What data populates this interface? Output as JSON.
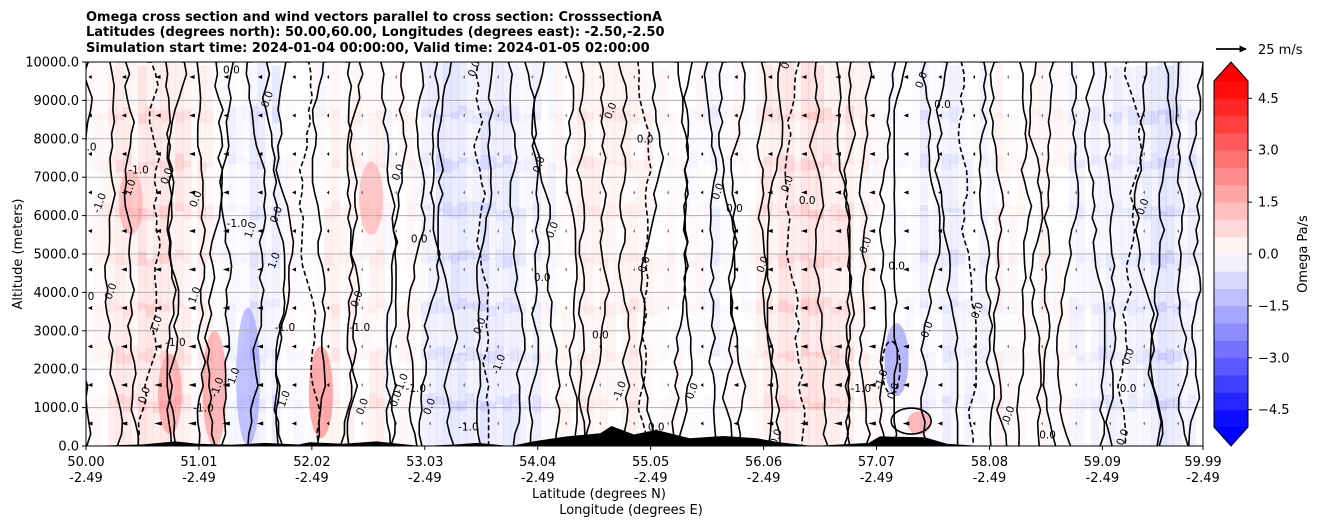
{
  "chart_data": {
    "type": "heatmap",
    "title_lines": [
      "Omega cross section and wind vectors parallel to cross section: CrosssectionA",
      "Latitudes (degrees north): 50.00,60.00, Longitudes (degrees east): -2.50,-2.50",
      "Simulation start time: 2024-01-04 00:00:00, Valid time: 2024-01-05 02:00:00"
    ],
    "xlabel_lines": [
      "Latitude (degrees N)",
      "Longitude (degrees E)"
    ],
    "ylabel": "Altitude (meters)",
    "x_range": [
      50.0,
      59.99
    ],
    "y_range": [
      0,
      10000
    ],
    "grid": "horizontal",
    "x_ticks": [
      {
        "lat": "50.00",
        "lon": "-2.49",
        "v": 50.0
      },
      {
        "lat": "51.01",
        "lon": "-2.49",
        "v": 51.01
      },
      {
        "lat": "52.02",
        "lon": "-2.49",
        "v": 52.02
      },
      {
        "lat": "53.03",
        "lon": "-2.49",
        "v": 53.03
      },
      {
        "lat": "54.04",
        "lon": "-2.49",
        "v": 54.04
      },
      {
        "lat": "55.05",
        "lon": "-2.49",
        "v": 55.05
      },
      {
        "lat": "56.06",
        "lon": "-2.49",
        "v": 56.06
      },
      {
        "lat": "57.07",
        "lon": "-2.49",
        "v": 57.07
      },
      {
        "lat": "58.08",
        "lon": "-2.49",
        "v": 58.08
      },
      {
        "lat": "59.09",
        "lon": "-2.49",
        "v": 59.09
      },
      {
        "lat": "59.99",
        "lon": "-2.49",
        "v": 59.99
      }
    ],
    "y_ticks": [
      {
        "label": "0.0",
        "v": 0
      },
      {
        "label": "1000.0",
        "v": 1000
      },
      {
        "label": "2000.0",
        "v": 2000
      },
      {
        "label": "3000.0",
        "v": 3000
      },
      {
        "label": "4000.0",
        "v": 4000
      },
      {
        "label": "5000.0",
        "v": 5000
      },
      {
        "label": "6000.0",
        "v": 6000
      },
      {
        "label": "7000.0",
        "v": 7000
      },
      {
        "label": "8000.0",
        "v": 8000
      },
      {
        "label": "9000.0",
        "v": 9000
      },
      {
        "label": "10000.0",
        "v": 10000
      }
    ],
    "colorbar": {
      "label": "Omega Pa/s",
      "range": [
        -5.0,
        5.0
      ],
      "extend": "both",
      "ticks": [
        {
          "label": "4.5",
          "v": 4.5
        },
        {
          "label": "3.0",
          "v": 3.0
        },
        {
          "label": "1.5",
          "v": 1.5
        },
        {
          "label": "0.0",
          "v": 0.0
        },
        {
          "label": "−1.5",
          "v": -1.5
        },
        {
          "label": "−3.0",
          "v": -3.0
        },
        {
          "label": "−4.5",
          "v": -4.5
        }
      ],
      "colormap": "bwr",
      "neg_color": "#0000ff",
      "zero_color": "#ffffff",
      "pos_color": "#ff0000"
    },
    "quiver_key": {
      "label": "25 m/s",
      "value": 25
    },
    "contour_labels": [
      {
        "text": "0.0",
        "lat": 50.02,
        "alt": 7700
      },
      {
        "text": "-1.0",
        "lat": 50.15,
        "alt": 6300
      },
      {
        "text": "1.0",
        "lat": 50.42,
        "alt": 6700
      },
      {
        "text": "-1.0",
        "lat": 50.47,
        "alt": 7100
      },
      {
        "text": "0.0",
        "lat": 50.75,
        "alt": 7000
      },
      {
        "text": "0.0",
        "lat": 51.01,
        "alt": 6400
      },
      {
        "text": "-1.0",
        "lat": 51.35,
        "alt": 5700
      },
      {
        "text": "1.0",
        "lat": 51.5,
        "alt": 5600
      },
      {
        "text": "0.0",
        "lat": 51.73,
        "alt": 6000
      },
      {
        "text": "0.0",
        "lat": 50.0,
        "alt": 3800
      },
      {
        "text": "0.0",
        "lat": 50.25,
        "alt": 4000
      },
      {
        "text": "-1.0",
        "lat": 50.65,
        "alt": 3100
      },
      {
        "text": "-1.0",
        "lat": 50.8,
        "alt": 2600
      },
      {
        "text": "1.0",
        "lat": 51.0,
        "alt": 3900
      },
      {
        "text": "1.0",
        "lat": 51.71,
        "alt": 4800
      },
      {
        "text": "-1.0",
        "lat": 51.78,
        "alt": 3000
      },
      {
        "text": "1.0",
        "lat": 51.35,
        "alt": 1800
      },
      {
        "text": "0.0",
        "lat": 50.55,
        "alt": 1300
      },
      {
        "text": "-1.0",
        "lat": 51.05,
        "alt": 900
      },
      {
        "text": "-1.0",
        "lat": 51.2,
        "alt": 1500
      },
      {
        "text": "1.0",
        "lat": 51.8,
        "alt": 1200
      },
      {
        "text": "-1.0",
        "lat": 52.45,
        "alt": 3000
      },
      {
        "text": "0.0",
        "lat": 52.45,
        "alt": 3800
      },
      {
        "text": "-1.0",
        "lat": 52.85,
        "alt": 1600
      },
      {
        "text": "-1.0",
        "lat": 52.95,
        "alt": 1400
      },
      {
        "text": "0.0",
        "lat": 52.8,
        "alt": 1200
      },
      {
        "text": "0.0",
        "lat": 52.5,
        "alt": 1000
      },
      {
        "text": "0.0",
        "lat": 52.98,
        "alt": 5300
      },
      {
        "text": "0.0",
        "lat": 52.82,
        "alt": 7100
      },
      {
        "text": "0.0",
        "lat": 53.1,
        "alt": 1000
      },
      {
        "text": "-1.0",
        "lat": 53.42,
        "alt": 400
      },
      {
        "text": "0.0",
        "lat": 53.55,
        "alt": 3100
      },
      {
        "text": "-1.0",
        "lat": 53.72,
        "alt": 2100
      },
      {
        "text": "0.0",
        "lat": 54.08,
        "alt": 4300
      },
      {
        "text": "0.0",
        "lat": 54.08,
        "alt": 7300
      },
      {
        "text": "0.0",
        "lat": 54.2,
        "alt": 5600
      },
      {
        "text": "0.0",
        "lat": 54.6,
        "alt": 2800
      },
      {
        "text": "-1.0",
        "lat": 54.8,
        "alt": 1400
      },
      {
        "text": "0.0",
        "lat": 55.45,
        "alt": 1400
      },
      {
        "text": "0.0",
        "lat": 55.1,
        "alt": 400
      },
      {
        "text": "0.0",
        "lat": 55.68,
        "alt": 6600
      },
      {
        "text": "0.0",
        "lat": 55.02,
        "alt": 4700
      },
      {
        "text": "0.0",
        "lat": 55.8,
        "alt": 6100
      },
      {
        "text": "0.0",
        "lat": 56.08,
        "alt": 4700
      },
      {
        "text": "0.0",
        "lat": 56.3,
        "alt": 6800
      },
      {
        "text": "0.0",
        "lat": 56.45,
        "alt": 6300
      },
      {
        "text": "0.0",
        "lat": 56.2,
        "alt": 200
      },
      {
        "text": "0.0",
        "lat": 57.0,
        "alt": 5200
      },
      {
        "text": "0.0",
        "lat": 57.25,
        "alt": 4600
      },
      {
        "text": "0.0",
        "lat": 57.5,
        "alt": 9500
      },
      {
        "text": "0.0",
        "lat": 57.55,
        "alt": 3000
      },
      {
        "text": "-1.0",
        "lat": 56.93,
        "alt": 1400
      },
      {
        "text": "-1.0",
        "lat": 57.14,
        "alt": 1700
      },
      {
        "text": "0.0",
        "lat": 57.25,
        "alt": 1400
      },
      {
        "text": "0.0",
        "lat": 57.66,
        "alt": 8800
      },
      {
        "text": "0.0",
        "lat": 58.0,
        "alt": 3500
      },
      {
        "text": "0.0",
        "lat": 58.28,
        "alt": 800
      },
      {
        "text": "0.0",
        "lat": 58.6,
        "alt": 200
      },
      {
        "text": "0.0",
        "lat": 59.48,
        "alt": 6200
      },
      {
        "text": "0.0",
        "lat": 59.35,
        "alt": 2300
      },
      {
        "text": "0.0",
        "lat": 59.32,
        "alt": 1400
      },
      {
        "text": "0.0",
        "lat": 59.3,
        "alt": 200
      },
      {
        "text": "0.0",
        "lat": 56.3,
        "alt": 10000
      },
      {
        "text": "0.0",
        "lat": 55.0,
        "alt": 7900
      },
      {
        "text": "0.0",
        "lat": 54.72,
        "alt": 8700
      },
      {
        "text": "0.0",
        "lat": 53.5,
        "alt": 9800
      },
      {
        "text": "0.0",
        "lat": 51.3,
        "alt": 9700
      },
      {
        "text": "0.0",
        "lat": 51.65,
        "alt": 9000
      }
    ]
  }
}
